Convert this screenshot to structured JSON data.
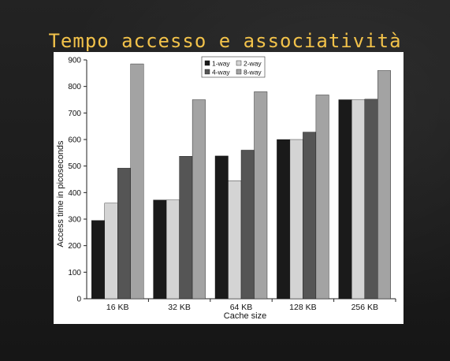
{
  "slide": {
    "title": "Tempo accesso e associatività"
  },
  "colors": {
    "title": "#f2c24a",
    "background": "#1c1c1c",
    "card": "#ffffff",
    "series": [
      "#1a1a1a",
      "#d4d4d4",
      "#555555",
      "#a3a3a3"
    ]
  },
  "chart_data": {
    "type": "bar",
    "title": "",
    "xlabel": "Cache size",
    "ylabel": "Access time in picoseconds",
    "categories": [
      "16 KB",
      "32 KB",
      "64 KB",
      "128 KB",
      "256 KB"
    ],
    "ylim": [
      0,
      900
    ],
    "yticks": [
      0,
      100,
      200,
      300,
      400,
      500,
      600,
      700,
      800,
      900
    ],
    "grid": false,
    "legend_position": "top-center",
    "series": [
      {
        "name": "1-way",
        "values": [
          295,
          372,
          538,
          600,
          750
        ]
      },
      {
        "name": "2-way",
        "values": [
          360,
          372,
          445,
          600,
          750
        ]
      },
      {
        "name": "4-way",
        "values": [
          492,
          537,
          560,
          628,
          752
        ]
      },
      {
        "name": "8-way",
        "values": [
          885,
          750,
          780,
          768,
          860
        ]
      }
    ]
  }
}
